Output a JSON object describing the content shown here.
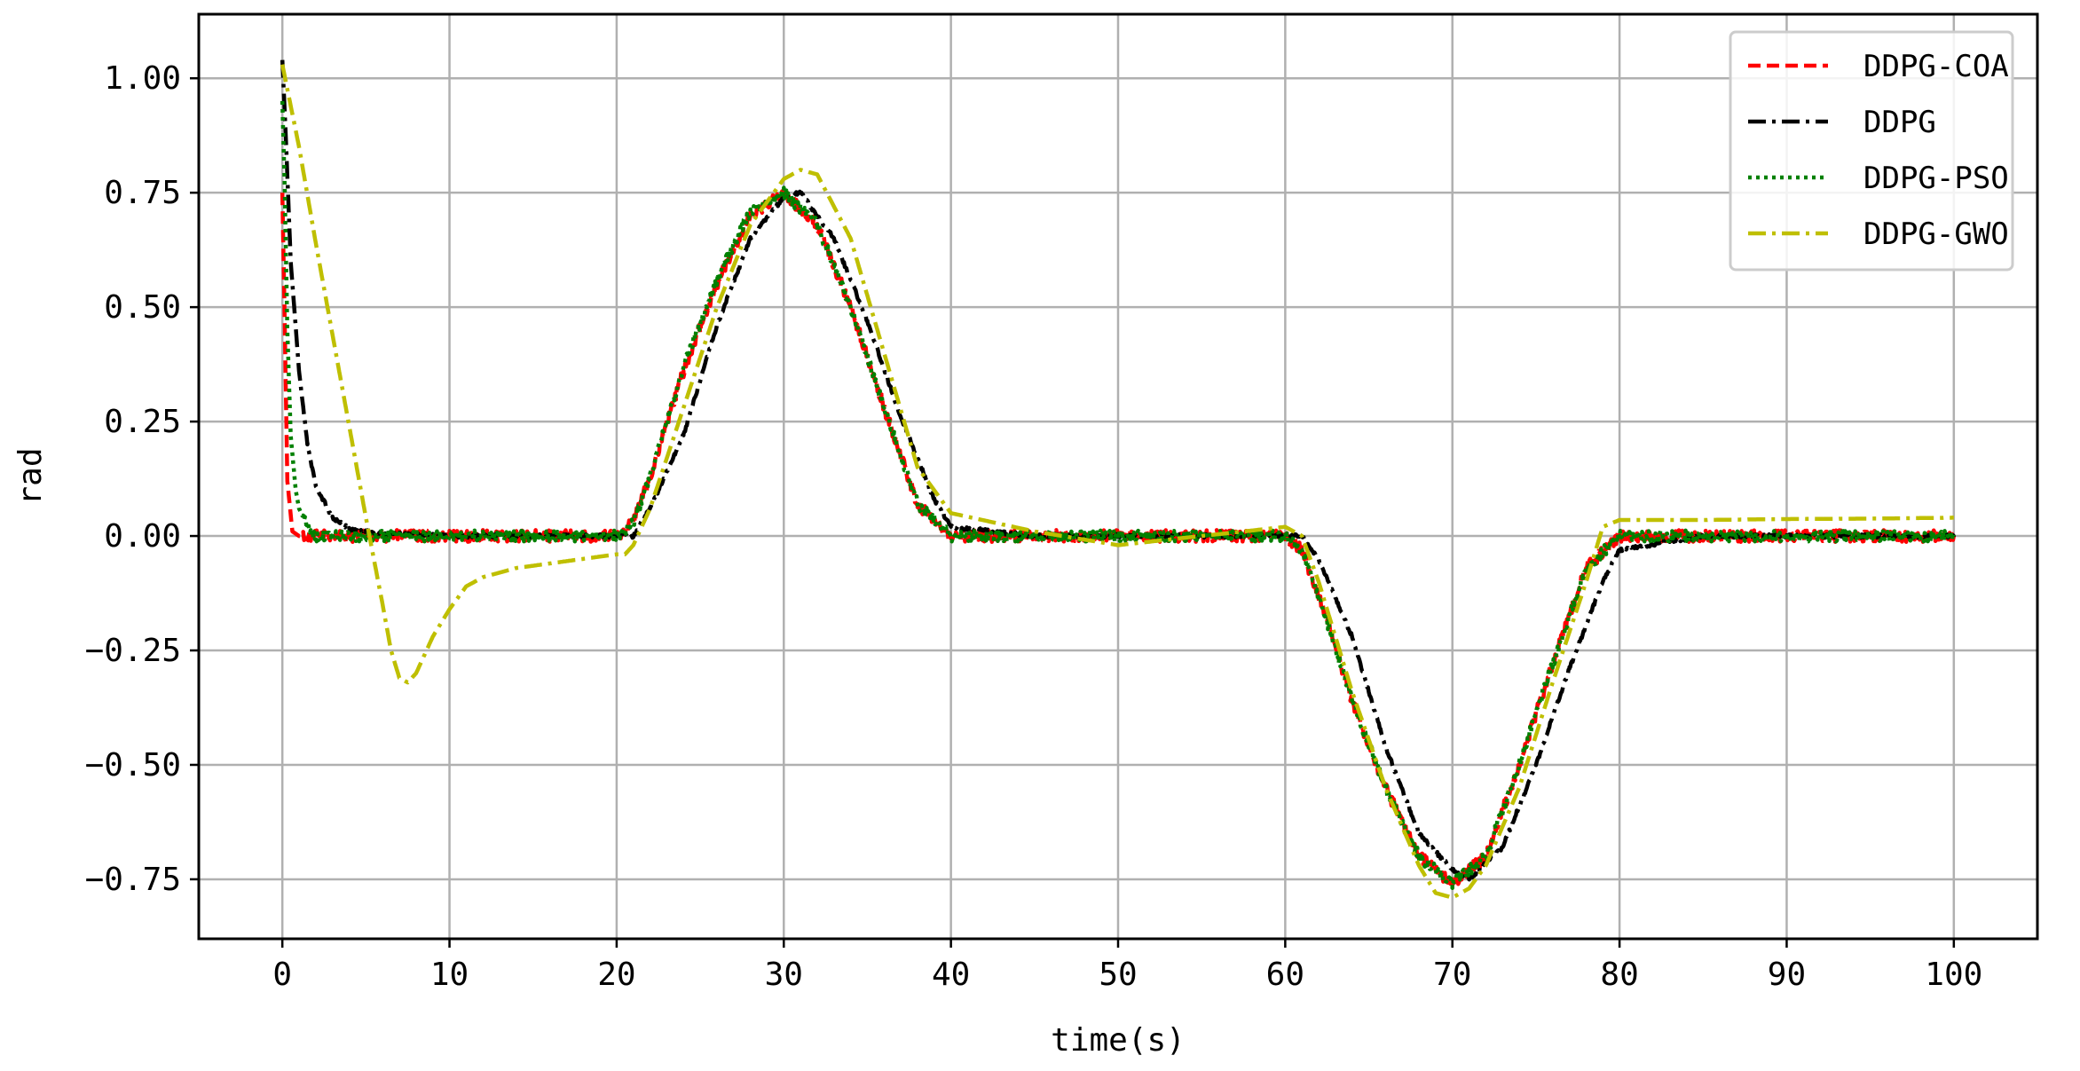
{
  "chart_data": {
    "type": "line",
    "title": "",
    "xlabel": "time(s)",
    "ylabel": "rad",
    "xlim": [
      -5,
      105
    ],
    "ylim": [
      -0.88,
      1.14
    ],
    "xticks": [
      0,
      10,
      20,
      30,
      40,
      50,
      60,
      70,
      80,
      90,
      100
    ],
    "xtick_labels": [
      "0",
      "10",
      "20",
      "30",
      "40",
      "50",
      "60",
      "70",
      "80",
      "90",
      "100"
    ],
    "yticks": [
      1.0,
      0.75,
      0.5,
      0.25,
      0.0,
      -0.25,
      -0.5,
      -0.75
    ],
    "ytick_labels": [
      "1.00",
      "0.75",
      "0.50",
      "0.25",
      "0.00",
      "−0.25",
      "−0.50",
      "−0.75"
    ],
    "grid": true,
    "legend_position": "top-right",
    "series": [
      {
        "name": "DDPG-COA",
        "color": "#ff0000",
        "dash": "dashed",
        "x": [
          0,
          0.15,
          0.3,
          0.6,
          1,
          3,
          6,
          10,
          15,
          20,
          21,
          22,
          24,
          26,
          28,
          30,
          32,
          34,
          36,
          38,
          40,
          45,
          50,
          55,
          60,
          61,
          62,
          64,
          66,
          68,
          70,
          72,
          74,
          76,
          78,
          80,
          85,
          90,
          95,
          100
        ],
        "y": [
          0.75,
          0.45,
          0.12,
          0.01,
          0.0,
          0.0,
          0.0,
          0.0,
          0.0,
          0.0,
          0.03,
          0.13,
          0.36,
          0.55,
          0.7,
          0.75,
          0.68,
          0.5,
          0.28,
          0.07,
          0.0,
          0.0,
          0.0,
          0.0,
          0.0,
          -0.03,
          -0.13,
          -0.36,
          -0.55,
          -0.7,
          -0.76,
          -0.7,
          -0.5,
          -0.28,
          -0.07,
          0.0,
          0.0,
          0.0,
          0.0,
          0.0
        ],
        "noise": 0.013
      },
      {
        "name": "DDPG",
        "color": "#000000",
        "dash": "dashdot",
        "x": [
          0,
          0.2,
          0.5,
          1,
          1.5,
          2,
          3,
          4,
          6,
          10,
          15,
          20,
          21,
          22,
          24,
          26,
          28,
          30,
          31,
          33,
          35,
          37,
          39,
          40,
          45,
          50,
          55,
          60,
          61,
          62,
          64,
          66,
          68,
          70,
          71,
          73,
          75,
          77,
          79,
          80,
          85,
          90,
          95,
          100
        ],
        "y": [
          1.04,
          0.88,
          0.6,
          0.36,
          0.2,
          0.11,
          0.04,
          0.015,
          0.005,
          0.0,
          0.0,
          0.0,
          0.0,
          0.06,
          0.22,
          0.46,
          0.65,
          0.74,
          0.75,
          0.65,
          0.47,
          0.26,
          0.08,
          0.02,
          0.0,
          0.0,
          0.0,
          0.0,
          0.0,
          -0.05,
          -0.22,
          -0.46,
          -0.65,
          -0.73,
          -0.75,
          -0.68,
          -0.5,
          -0.29,
          -0.1,
          -0.03,
          0.0,
          0.0,
          0.0,
          0.0
        ],
        "noise": 0.004
      },
      {
        "name": "DDPG-PSO",
        "color": "#008000",
        "dash": "dotted",
        "x": [
          0,
          0.15,
          0.3,
          0.5,
          0.8,
          1,
          1.5,
          2,
          3,
          6,
          10,
          15,
          20,
          21,
          22,
          24,
          26,
          28,
          30,
          32,
          34,
          36,
          38,
          40,
          45,
          50,
          55,
          60,
          61,
          62,
          64,
          66,
          68,
          70,
          72,
          74,
          76,
          78,
          80,
          85,
          90,
          95,
          100
        ],
        "y": [
          0.95,
          0.75,
          0.45,
          0.22,
          0.1,
          0.06,
          0.02,
          0.0,
          0.0,
          0.0,
          0.0,
          0.0,
          0.0,
          0.03,
          0.13,
          0.37,
          0.56,
          0.71,
          0.75,
          0.68,
          0.5,
          0.28,
          0.07,
          0.0,
          0.0,
          0.0,
          0.0,
          0.0,
          -0.03,
          -0.13,
          -0.36,
          -0.55,
          -0.7,
          -0.76,
          -0.7,
          -0.5,
          -0.28,
          -0.07,
          0.0,
          0.0,
          0.0,
          0.0,
          0.0
        ],
        "noise": 0.012
      },
      {
        "name": "DDPG-GWO",
        "color": "#bfbf00",
        "dash": "dashdot",
        "x": [
          0,
          1,
          2,
          3,
          4,
          5,
          6,
          6.5,
          7,
          7.5,
          8,
          9,
          10,
          11,
          12,
          14,
          16,
          18,
          20,
          20.5,
          21,
          22,
          24,
          26,
          28,
          30,
          31,
          32,
          34,
          36,
          38,
          40,
          45,
          50,
          55,
          60,
          61,
          62,
          64,
          66,
          68,
          69,
          70,
          71,
          72,
          74,
          76,
          78,
          79,
          80,
          85,
          90,
          95,
          100
        ],
        "y": [
          1.03,
          0.85,
          0.64,
          0.44,
          0.24,
          0.04,
          -0.15,
          -0.25,
          -0.31,
          -0.32,
          -0.3,
          -0.22,
          -0.16,
          -0.11,
          -0.09,
          -0.07,
          -0.06,
          -0.05,
          -0.04,
          -0.04,
          -0.02,
          0.06,
          0.28,
          0.5,
          0.68,
          0.78,
          0.8,
          0.79,
          0.65,
          0.4,
          0.15,
          0.05,
          0.01,
          -0.02,
          0.0,
          0.02,
          0.0,
          -0.1,
          -0.34,
          -0.55,
          -0.72,
          -0.78,
          -0.79,
          -0.77,
          -0.72,
          -0.55,
          -0.32,
          -0.1,
          0.02,
          0.035,
          0.035,
          0.037,
          0.038,
          0.04
        ],
        "noise": 0.0
      }
    ]
  }
}
